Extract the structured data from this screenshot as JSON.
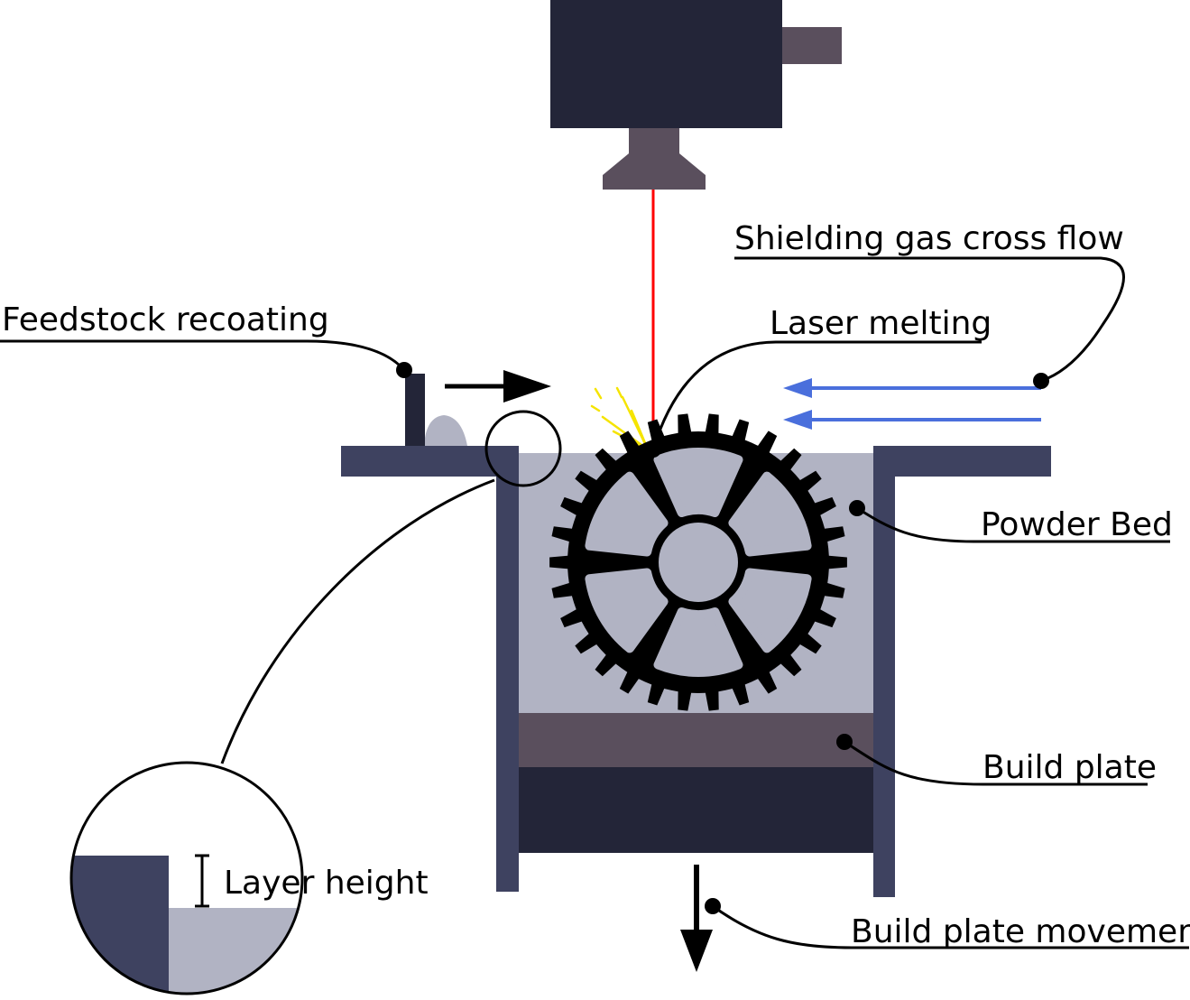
{
  "labels": {
    "shielding_gas": "Shielding gas cross flow",
    "feedstock": "Feedstock recoating",
    "laser": "Laser melting",
    "powder_bed": "Powder Bed",
    "build_plate": "Build plate",
    "layer_height": "Layer height",
    "build_plate_movement": "Build plate movement"
  },
  "colors": {
    "dark_navy": "#232538",
    "slate": "#3e4260",
    "powder": "#b1b3c3",
    "plate": "#5a4f5d",
    "laser": "#ff0000",
    "gas_arrow": "#4a6fdc",
    "spark": "#f5e400",
    "gear": "#000000"
  },
  "icons": {
    "gear": "gear-icon",
    "laser_head": "laser-head-icon",
    "magnifier": "magnifier-circle"
  }
}
